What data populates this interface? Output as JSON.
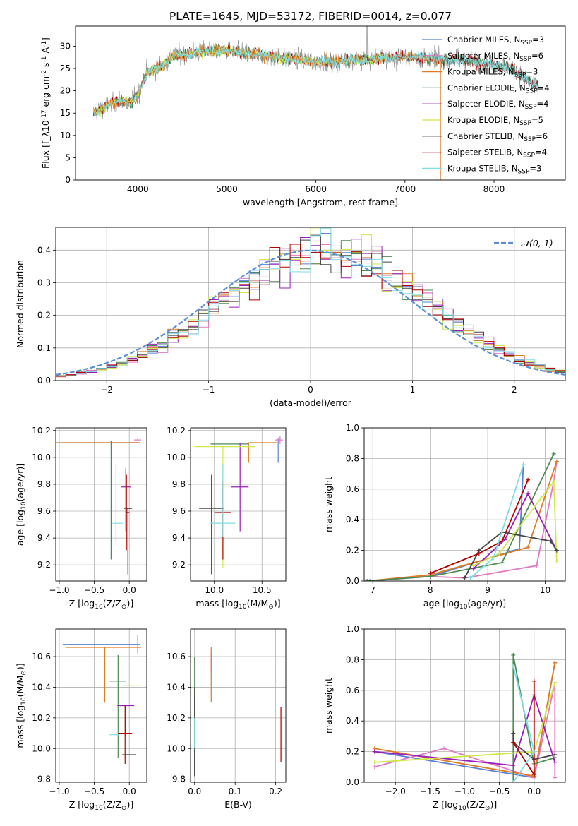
{
  "figure_title": "PLATE=1645, MJD=53172, FIBERID=0014, z=0.077",
  "colors": {
    "chabrier_miles": "#5b7fd6",
    "salpeter_miles": "#e377c2",
    "kroupa_miles": "#e07b22",
    "chabrier_elodie": "#4e8a55",
    "salpeter_elodie": "#9a1fb5",
    "kroupa_elodie": "#cfe84a",
    "chabrier_stelib": "#444444",
    "salpeter_stelib": "#b00000",
    "kroupa_stelib": "#7fdde6",
    "normal_curve": "#5b8fd6",
    "grid": "#b0b0b0"
  },
  "chart_data": [
    {
      "id": "spectrum",
      "type": "line",
      "xlabel": "wavelength [Angstrom, rest frame]",
      "ylabel": "Flux [f_λ10^{-17} erg cm^{-2} s^{-1} A^{-1}]",
      "xlim": [
        3300,
        8800
      ],
      "ylim": [
        0,
        34.5
      ],
      "xticks": [
        4000,
        5000,
        6000,
        7000,
        8000
      ],
      "yticks": [
        0,
        5,
        10,
        15,
        20,
        25,
        30
      ],
      "grid": false,
      "legend_position": "top-right",
      "legend": [
        {
          "label": "Chabrier MILES, N_SSP=3",
          "color_key": "chabrier_miles"
        },
        {
          "label": "Salpeter MILES, N_SSP=6",
          "color_key": "salpeter_miles"
        },
        {
          "label": "Kroupa MILES, N_SSP=3",
          "color_key": "kroupa_miles"
        },
        {
          "label": "Chabrier ELODIE, N_SSP=4",
          "color_key": "chabrier_elodie"
        },
        {
          "label": "Salpeter ELODIE, N_SSP=4",
          "color_key": "salpeter_elodie"
        },
        {
          "label": "Kroupa ELODIE, N_SSP=5",
          "color_key": "kroupa_elodie"
        },
        {
          "label": "Chabrier STELIB, N_SSP=6",
          "color_key": "chabrier_stelib"
        },
        {
          "label": "Salpeter STELIB, N_SSP=4",
          "color_key": "salpeter_stelib"
        },
        {
          "label": "Kroupa STELIB, N_SSP=3",
          "color_key": "kroupa_stelib"
        }
      ],
      "continuum": {
        "wavelength": [
          3500,
          3600,
          3700,
          3800,
          3900,
          4000,
          4100,
          4200,
          4300,
          4400,
          4500,
          4600,
          4800,
          5000,
          5200,
          5400,
          5600,
          5800,
          6000,
          6200,
          6400,
          6600,
          6800,
          7000,
          7200,
          7400,
          7600,
          7800,
          8000,
          8200,
          8400,
          8500
        ],
        "flux": [
          15,
          16,
          17,
          18,
          17,
          19,
          24,
          25,
          26,
          28,
          28,
          28.5,
          29,
          29,
          28.5,
          28,
          27.5,
          27,
          26.5,
          26.5,
          27,
          27,
          27.5,
          27.5,
          27.5,
          27,
          27,
          26.5,
          26,
          25,
          22,
          21
        ]
      },
      "model_stops": {
        "Kroupa ELODIE": 6800,
        "Kroupa MILES": 7400,
        "Salpeter MILES": 7400,
        "Chabrier MILES": 7400,
        "Kroupa STELIB": 8500
      }
    },
    {
      "id": "residual_hist",
      "type": "histogram",
      "xlabel": "(data-model)/error",
      "ylabel": "Normed distribution",
      "xlim": [
        -2.5,
        2.5
      ],
      "ylim": [
        0,
        0.47
      ],
      "xticks": [
        -2,
        -1,
        0,
        1,
        2
      ],
      "yticks": [
        0.0,
        0.1,
        0.2,
        0.3,
        0.4
      ],
      "grid": true,
      "legend_position": "top-right",
      "legend": [
        {
          "label": "𝒩(0, 1)",
          "color_key": "normal_curve"
        }
      ],
      "bin_width": 0.1
    },
    {
      "id": "age_vs_Z",
      "type": "errorbar",
      "xlabel": "Z [log10(Z/Z⊙)]",
      "ylabel": "age [log10(age/yr)]",
      "xlim": [
        -1.05,
        0.25
      ],
      "ylim": [
        9.08,
        10.22
      ],
      "xticks": [
        -1.0,
        -0.5,
        0.0
      ],
      "yticks": [
        9.2,
        9.4,
        9.6,
        9.8,
        10.0,
        10.2
      ],
      "grid": true,
      "points": [
        {
          "model": "chabrier_miles",
          "x": -0.4,
          "xerr": [
            0.55,
            0.55
          ],
          "y": 10.11,
          "yerr": [
            0.0,
            0.0
          ]
        },
        {
          "model": "salpeter_miles",
          "x": 0.12,
          "xerr": [
            0.05,
            0.05
          ],
          "y": 10.13,
          "yerr": [
            0.01,
            0.01
          ]
        },
        {
          "model": "kroupa_miles",
          "x": -0.45,
          "xerr": [
            0.6,
            0.6
          ],
          "y": 10.11,
          "yerr": [
            0.0,
            0.0
          ]
        },
        {
          "model": "chabrier_elodie",
          "x": -0.26,
          "xerr": [
            0.0,
            0.0
          ],
          "y": 9.7,
          "yerr": [
            0.46,
            0.42
          ]
        },
        {
          "model": "salpeter_elodie",
          "x": -0.05,
          "xerr": [
            0.07,
            0.07
          ],
          "y": 9.78,
          "yerr": [
            0.33,
            0.14
          ]
        },
        {
          "model": "kroupa_elodie",
          "x": 0.16,
          "xerr": [
            0.0,
            0.0
          ],
          "y": 10.11,
          "yerr": [
            0.0,
            0.0
          ]
        },
        {
          "model": "chabrier_stelib",
          "x": -0.02,
          "xerr": [
            0.06,
            0.06
          ],
          "y": 9.62,
          "yerr": [
            0.49,
            0.0
          ]
        },
        {
          "model": "salpeter_stelib",
          "x": -0.04,
          "xerr": [
            0.0,
            0.04
          ],
          "y": 9.59,
          "yerr": [
            0.28,
            0.28
          ]
        },
        {
          "model": "kroupa_stelib",
          "x": -0.19,
          "xerr": [
            0.05,
            0.1
          ],
          "y": 9.51,
          "yerr": [
            0.14,
            0.44
          ]
        }
      ]
    },
    {
      "id": "age_vs_mass",
      "type": "errorbar",
      "xlabel": "mass [log10(M/M⊙)]",
      "ylabel": "",
      "xlim": [
        9.75,
        10.75
      ],
      "ylim": [
        9.08,
        10.22
      ],
      "xticks": [
        10.0,
        10.5
      ],
      "yticks": [
        9.2,
        9.4,
        9.6,
        9.8,
        10.0,
        10.2
      ],
      "grid": true,
      "points": [
        {
          "model": "chabrier_miles",
          "x": 10.67,
          "xerr": [
            0.0,
            0.0
          ],
          "y": 10.11,
          "yerr": [
            0.15,
            0.03
          ]
        },
        {
          "model": "salpeter_miles",
          "x": 10.69,
          "xerr": [
            0.05,
            0.03
          ],
          "y": 10.13,
          "yerr": [
            0.03,
            0.03
          ]
        },
        {
          "model": "kroupa_miles",
          "x": 10.36,
          "xerr": [
            0.0,
            0.3
          ],
          "y": 10.11,
          "yerr": [
            0.15,
            0.0
          ]
        },
        {
          "model": "chabrier_elodie",
          "x": 10.36,
          "xerr": [
            0.4,
            0.0
          ],
          "y": 10.1,
          "yerr": [
            0.0,
            0.0
          ]
        },
        {
          "model": "salpeter_elodie",
          "x": 10.27,
          "xerr": [
            0.09,
            0.09
          ],
          "y": 9.78,
          "yerr": [
            0.33,
            0.33
          ]
        },
        {
          "model": "kroupa_elodie",
          "x": 10.09,
          "xerr": [
            0.3,
            0.34
          ],
          "y": 10.08,
          "yerr": [
            0.9,
            0.0
          ]
        },
        {
          "model": "chabrier_stelib",
          "x": 9.97,
          "xerr": [
            0.13,
            0.13
          ],
          "y": 9.62,
          "yerr": [
            0.49,
            0.25
          ]
        },
        {
          "model": "salpeter_stelib",
          "x": 10.09,
          "xerr": [
            0.09,
            0.09
          ],
          "y": 9.59,
          "yerr": [
            0.35,
            0.23
          ]
        },
        {
          "model": "kroupa_stelib",
          "x": 10.09,
          "xerr": [
            0.13,
            0.13
          ],
          "y": 9.51,
          "yerr": [
            0.1,
            0.44
          ]
        }
      ]
    },
    {
      "id": "weight_vs_age",
      "type": "line",
      "xlabel": "age [log10(age/yr)]",
      "ylabel": "mass weight",
      "xlim": [
        6.85,
        10.35
      ],
      "ylim": [
        0,
        1.0
      ],
      "xticks": [
        7,
        8,
        9,
        10
      ],
      "yticks": [
        0.0,
        0.2,
        0.4,
        0.6,
        0.8,
        1.0
      ],
      "grid": true,
      "series": [
        {
          "model": "chabrier_miles",
          "x": [
            6.95,
            8.0,
            9.55,
            9.62
          ],
          "y": [
            0.0,
            0.03,
            0.21,
            0.76
          ]
        },
        {
          "model": "salpeter_miles",
          "x": [
            6.9,
            8.0,
            8.6,
            9.85,
            10.15,
            10.2
          ],
          "y": [
            0.0,
            0.03,
            0.02,
            0.1,
            0.65,
            0.78
          ]
        },
        {
          "model": "kroupa_miles",
          "x": [
            6.9,
            8.0,
            9.7,
            10.2
          ],
          "y": [
            0.0,
            0.04,
            0.22,
            0.78
          ]
        },
        {
          "model": "chabrier_elodie",
          "x": [
            6.9,
            8.0,
            9.25,
            10.15
          ],
          "y": [
            0.0,
            0.03,
            0.12,
            0.83
          ]
        },
        {
          "model": "salpeter_elodie",
          "x": [
            8.75,
            9.3,
            9.7,
            10.2
          ],
          "y": [
            0.08,
            0.27,
            0.57,
            0.2
          ]
        },
        {
          "model": "kroupa_elodie",
          "x": [
            8.75,
            9.2,
            10.15,
            10.2
          ],
          "y": [
            0.1,
            0.18,
            0.65,
            0.13
          ]
        },
        {
          "model": "chabrier_stelib",
          "x": [
            8.6,
            8.85,
            9.25,
            10.1,
            10.2
          ],
          "y": [
            0.02,
            0.2,
            0.32,
            0.26,
            0.2
          ]
        },
        {
          "model": "salpeter_stelib",
          "x": [
            8.0,
            8.85,
            9.25,
            9.7
          ],
          "y": [
            0.05,
            0.18,
            0.26,
            0.66
          ]
        },
        {
          "model": "kroupa_stelib",
          "x": [
            8.7,
            9.1,
            9.62
          ],
          "y": [
            0.02,
            0.15,
            0.76
          ]
        }
      ]
    },
    {
      "id": "mass_vs_Z",
      "type": "errorbar",
      "xlabel": "Z [log10(Z/Z⊙)]",
      "ylabel": "mass [log10(M/M⊙)]",
      "xlim": [
        -1.05,
        0.25
      ],
      "ylim": [
        9.78,
        10.78
      ],
      "xticks": [
        -1.0,
        -0.5,
        0.0
      ],
      "yticks": [
        9.8,
        10.0,
        10.2,
        10.4,
        10.6
      ],
      "grid": true,
      "points": [
        {
          "model": "chabrier_miles",
          "x": -0.4,
          "xerr": [
            0.55,
            0.55
          ],
          "y": 10.68,
          "yerr": [
            0.0,
            0.0
          ]
        },
        {
          "model": "salpeter_miles",
          "x": 0.12,
          "xerr": [
            0.0,
            0.0
          ],
          "y": 10.68,
          "yerr": [
            0.06,
            0.06
          ]
        },
        {
          "model": "kroupa_miles",
          "x": -0.35,
          "xerr": [
            0.55,
            0.52
          ],
          "y": 10.66,
          "yerr": [
            0.36,
            0.0
          ]
        },
        {
          "model": "chabrier_elodie",
          "x": -0.16,
          "xerr": [
            0.12,
            0.12
          ],
          "y": 10.44,
          "yerr": [
            0.5,
            0.17
          ]
        },
        {
          "model": "salpeter_elodie",
          "x": -0.05,
          "xerr": [
            0.12,
            0.12
          ],
          "y": 10.28,
          "yerr": [
            0.2,
            0.0
          ]
        },
        {
          "model": "kroupa_elodie",
          "x": 0.04,
          "xerr": [
            0.12,
            0.12
          ],
          "y": 10.41,
          "yerr": [
            0.0,
            0.0
          ]
        },
        {
          "model": "chabrier_stelib",
          "x": 0.0,
          "xerr": [
            0.1,
            0.1
          ],
          "y": 9.96,
          "yerr": [
            0.0,
            0.0
          ]
        },
        {
          "model": "salpeter_stelib",
          "x": -0.06,
          "xerr": [
            0.1,
            0.1
          ],
          "y": 10.1,
          "yerr": [
            0.2,
            0.18
          ]
        },
        {
          "model": "kroupa_stelib",
          "x": -0.2,
          "xerr": [
            0.08,
            0.06
          ],
          "y": 10.09,
          "yerr": [
            0.0,
            0.0
          ]
        }
      ]
    },
    {
      "id": "mass_vs_ebv",
      "type": "errorbar",
      "xlabel": "E(B-V)",
      "ylabel": "",
      "xlim": [
        -0.01,
        0.225
      ],
      "ylim": [
        9.78,
        10.78
      ],
      "xticks": [
        0.0,
        0.1,
        0.2
      ],
      "yticks": [
        9.8,
        10.0,
        10.2,
        10.4,
        10.6
      ],
      "grid": true,
      "points": [
        {
          "model": "chabrier_miles",
          "x": 0.04,
          "xerr": [
            0.0,
            0.0
          ],
          "y": 10.68,
          "yerr": [
            0.0,
            0.0
          ]
        },
        {
          "model": "salpeter_miles",
          "x": 0.041,
          "xerr": [
            0.0,
            0.0
          ],
          "y": 10.62,
          "yerr": [
            0.12,
            0.0
          ]
        },
        {
          "model": "kroupa_miles",
          "x": 0.041,
          "xerr": [
            0.0,
            0.0
          ],
          "y": 10.5,
          "yerr": [
            0.2,
            0.16
          ]
        },
        {
          "model": "chabrier_elodie",
          "x": 0.0,
          "xerr": [
            0.0,
            0.0
          ],
          "y": 10.4,
          "yerr": [
            0.58,
            0.2
          ]
        },
        {
          "model": "salpeter_elodie",
          "x": 0.0,
          "xerr": [
            0.0,
            0.0
          ],
          "y": 10.2,
          "yerr": [
            0.0,
            0.0
          ]
        },
        {
          "model": "kroupa_elodie",
          "x": 0.0,
          "xerr": [
            0.0,
            0.0
          ],
          "y": 10.34,
          "yerr": [
            0.0,
            0.06
          ]
        },
        {
          "model": "chabrier_stelib",
          "x": 0.0,
          "xerr": [
            0.0,
            0.0
          ],
          "y": 10.2,
          "yerr": [
            0.38,
            0.2
          ]
        },
        {
          "model": "salpeter_stelib",
          "x": 0.213,
          "xerr": [
            0.0,
            0.0
          ],
          "y": 10.09,
          "yerr": [
            0.18,
            0.18
          ]
        },
        {
          "model": "kroupa_stelib",
          "x": 0.0,
          "xerr": [
            0.0,
            0.0
          ],
          "y": 10.1,
          "yerr": [
            0.1,
            0.1
          ]
        }
      ]
    },
    {
      "id": "weight_vs_Z",
      "type": "line",
      "xlabel": "Z [log10(Z/Z⊙)]",
      "ylabel": "mass weight",
      "xlim": [
        -2.45,
        0.45
      ],
      "ylim": [
        0,
        1.0
      ],
      "xticks": [
        -2.0,
        -1.5,
        -1.0,
        -0.5,
        0.0
      ],
      "yticks": [
        0.0,
        0.2,
        0.4,
        0.6,
        0.8,
        1.0
      ],
      "grid": true,
      "series": [
        {
          "model": "chabrier_miles",
          "x": [
            -2.3,
            0.0,
            0.3
          ],
          "y": [
            0.2,
            0.03,
            0.78
          ]
        },
        {
          "model": "salpeter_miles",
          "x": [
            -2.3,
            -1.3,
            0.0,
            0.3,
            0.3
          ],
          "y": [
            0.1,
            0.22,
            0.03,
            0.65,
            0.03
          ]
        },
        {
          "model": "kroupa_miles",
          "x": [
            -2.3,
            0.0,
            0.3
          ],
          "y": [
            0.22,
            0.04,
            0.78
          ]
        },
        {
          "model": "chabrier_elodie",
          "x": [
            -0.3,
            -0.3,
            0.0,
            0.3
          ],
          "y": [
            0.0,
            0.83,
            0.12,
            0.16
          ]
        },
        {
          "model": "salpeter_elodie",
          "x": [
            -2.3,
            -0.3,
            0.0,
            0.3
          ],
          "y": [
            0.2,
            0.11,
            0.57,
            0.13
          ]
        },
        {
          "model": "kroupa_elodie",
          "x": [
            -2.3,
            0.0,
            0.3
          ],
          "y": [
            0.13,
            0.2,
            0.65
          ]
        },
        {
          "model": "chabrier_stelib",
          "x": [
            -0.3,
            -0.3,
            0.0,
            0.3
          ],
          "y": [
            0.32,
            0.26,
            0.15,
            0.18
          ]
        },
        {
          "model": "salpeter_stelib",
          "x": [
            -0.3,
            0.0,
            0.0
          ],
          "y": [
            0.26,
            0.05,
            0.66
          ]
        },
        {
          "model": "kroupa_stelib",
          "x": [
            -0.3,
            0.0,
            -0.3
          ],
          "y": [
            0.76,
            0.2,
            0.0
          ]
        }
      ]
    }
  ]
}
